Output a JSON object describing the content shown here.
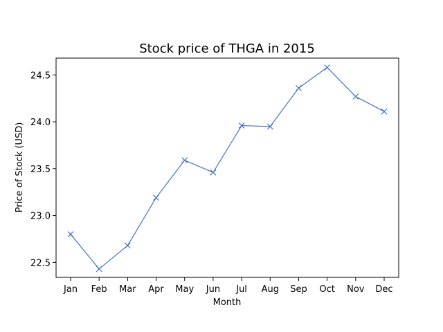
{
  "chart_data": {
    "type": "line",
    "title": "Stock price of THGA in 2015",
    "xlabel": "Month",
    "ylabel": "Price of Stock (USD)",
    "categories": [
      "Jan",
      "Feb",
      "Mar",
      "Apr",
      "May",
      "Jun",
      "Jul",
      "Aug",
      "Sep",
      "Oct",
      "Nov",
      "Dec"
    ],
    "series": [
      {
        "values": [
          22.8,
          22.43,
          22.68,
          23.19,
          23.59,
          23.46,
          23.96,
          23.95,
          24.36,
          24.58,
          24.27,
          24.11
        ],
        "color": "#4472c4",
        "marker": "x"
      }
    ],
    "ylim": [
      22.34,
      24.68
    ],
    "yticks": [
      22.5,
      23.0,
      23.5,
      24.0,
      24.5
    ],
    "grid": false
  }
}
